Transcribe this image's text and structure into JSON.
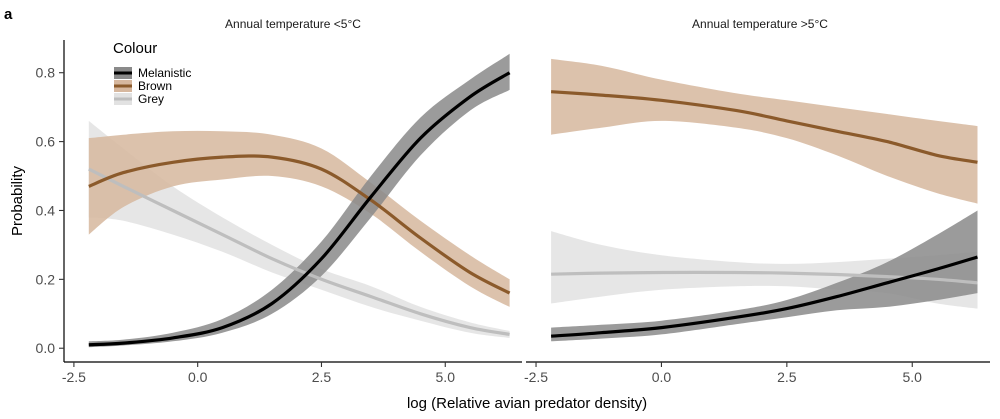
{
  "panel_label": "a",
  "chart_data": {
    "type": "line",
    "xlabel": "log (Relative avian predator density)",
    "ylabel": "Probability",
    "xlim": [
      -2.7,
      6.55
    ],
    "ylim": [
      -0.04,
      0.895
    ],
    "x_ticks": [
      -2.5,
      0,
      2.5,
      5
    ],
    "x_tick_labels": [
      "-2.5",
      "0.0",
      "2.5",
      "5.0"
    ],
    "y_ticks": [
      0,
      0.2,
      0.4,
      0.6,
      0.8
    ],
    "y_tick_labels": [
      "0.0",
      "0.2",
      "0.4",
      "0.6",
      "0.8"
    ],
    "grid": false,
    "legend": {
      "title": "Colour",
      "placement": "top-left",
      "entries": [
        "Melanistic",
        "Brown",
        "Grey"
      ]
    },
    "colors": {
      "Melanistic": "#000000",
      "Brown": "#8B5A2B",
      "Grey": "#BEBEBE",
      "Melanistic_band": "#8a8a8a",
      "Brown_band": "#D6B79E",
      "Grey_band": "#E2E2E2"
    },
    "panels": [
      {
        "title": "Annual temperature <5°C",
        "x": [
          -2.2,
          -1.5,
          -0.5,
          0.5,
          1.5,
          2.5,
          3.5,
          4.5,
          5.5,
          6.3
        ],
        "series": [
          {
            "name": "Grey",
            "values": [
              0.52,
              0.47,
              0.4,
              0.33,
              0.26,
              0.2,
              0.15,
              0.1,
              0.06,
              0.04
            ],
            "lower": [
              0.38,
              0.37,
              0.33,
              0.28,
              0.22,
              0.17,
              0.12,
              0.08,
              0.045,
              0.03
            ],
            "upper": [
              0.66,
              0.58,
              0.47,
              0.38,
              0.3,
              0.23,
              0.18,
              0.12,
              0.075,
              0.05
            ]
          },
          {
            "name": "Brown",
            "values": [
              0.47,
              0.51,
              0.54,
              0.555,
              0.555,
              0.52,
              0.43,
              0.32,
              0.22,
              0.16
            ],
            "lower": [
              0.33,
              0.41,
              0.47,
              0.49,
              0.5,
              0.47,
              0.39,
              0.28,
              0.18,
              0.12
            ],
            "upper": [
              0.61,
              0.62,
              0.63,
              0.63,
              0.62,
              0.58,
              0.48,
              0.37,
              0.27,
              0.2
            ]
          },
          {
            "name": "Melanistic",
            "values": [
              0.01,
              0.015,
              0.03,
              0.06,
              0.13,
              0.26,
              0.44,
              0.61,
              0.73,
              0.8
            ],
            "lower": [
              0.003,
              0.008,
              0.02,
              0.045,
              0.1,
              0.21,
              0.38,
              0.56,
              0.69,
              0.75
            ],
            "upper": [
              0.02,
              0.025,
              0.045,
              0.085,
              0.17,
              0.31,
              0.5,
              0.67,
              0.78,
              0.855
            ]
          }
        ]
      },
      {
        "title": "Annual temperature >5°C",
        "x": [
          -2.2,
          -1.2,
          0,
          1.5,
          2.5,
          3.5,
          4.5,
          5.5,
          6.3
        ],
        "series": [
          {
            "name": "Grey",
            "values": [
              0.215,
              0.218,
              0.22,
              0.22,
              0.218,
              0.214,
              0.208,
              0.2,
              0.19
            ],
            "lower": [
              0.13,
              0.15,
              0.17,
              0.18,
              0.18,
              0.17,
              0.16,
              0.13,
              0.115
            ],
            "upper": [
              0.34,
              0.3,
              0.27,
              0.25,
              0.245,
              0.25,
              0.26,
              0.27,
              0.28
            ]
          },
          {
            "name": "Brown",
            "values": [
              0.745,
              0.735,
              0.72,
              0.69,
              0.66,
              0.63,
              0.6,
              0.56,
              0.54
            ],
            "lower": [
              0.62,
              0.64,
              0.66,
              0.64,
              0.61,
              0.56,
              0.5,
              0.45,
              0.42
            ],
            "upper": [
              0.84,
              0.82,
              0.78,
              0.74,
              0.72,
              0.7,
              0.68,
              0.66,
              0.645
            ]
          },
          {
            "name": "Melanistic",
            "values": [
              0.035,
              0.045,
              0.06,
              0.09,
              0.115,
              0.15,
              0.19,
              0.23,
              0.265
            ],
            "lower": [
              0.02,
              0.028,
              0.04,
              0.07,
              0.09,
              0.11,
              0.12,
              0.14,
              0.16
            ],
            "upper": [
              0.06,
              0.068,
              0.08,
              0.11,
              0.14,
              0.19,
              0.25,
              0.33,
              0.4
            ]
          }
        ]
      }
    ]
  }
}
